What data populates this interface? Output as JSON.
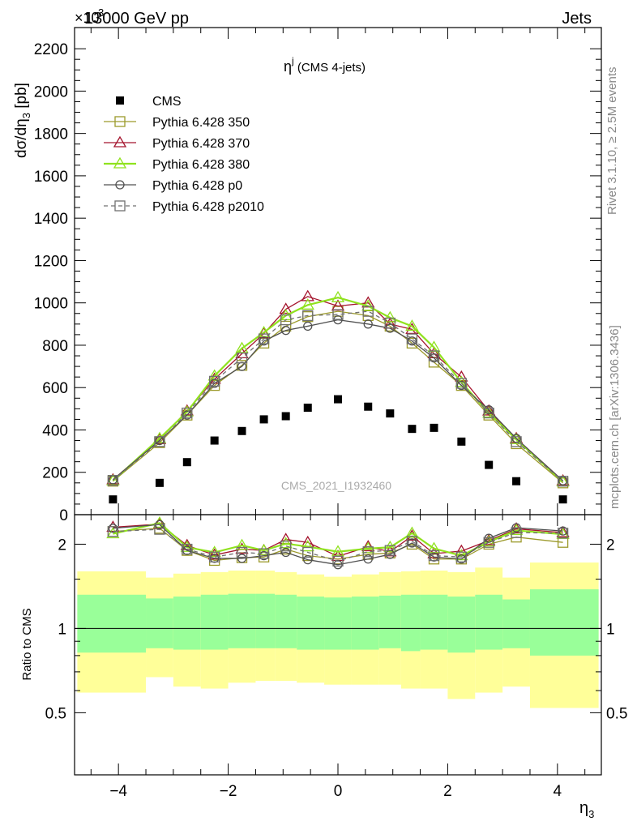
{
  "header": {
    "beam": "13000 GeV pp",
    "category": "Jets",
    "exp_mult": "×10",
    "exp_pow": "3"
  },
  "side_texts": {
    "rivet": "Rivet 3.1.10, ≥ 2.5M events",
    "mcplots": "mcplots.cern.ch [arXiv:1306.3436]"
  },
  "watermark": "CMS_2021_I1932460",
  "chart_data": [
    {
      "type": "scatter",
      "title": "η^j (CMS 4-jets)",
      "title_main": "η",
      "title_sup": "j",
      "title_rest": " (CMS 4-jets)",
      "xlabel": "η3",
      "ylabel": "dσ/dη3 [pb]",
      "xlim": [
        -4.8,
        4.8
      ],
      "ylim": [
        0,
        2300
      ],
      "yticks": [
        0,
        200,
        400,
        600,
        800,
        1000,
        1200,
        1400,
        1600,
        1800,
        2000,
        2200
      ],
      "ytick_labels": [
        "0",
        "200",
        "400",
        "600",
        "800",
        "1000",
        "1200",
        "1400",
        "1600",
        "1800",
        "2000",
        "2200"
      ],
      "y_scale_note": "values in units of 10^3 pb",
      "legend_position": "top-left",
      "x": [
        -4.1,
        -3.25,
        -2.75,
        -2.25,
        -1.75,
        -1.35,
        -0.95,
        -0.55,
        0.0,
        0.55,
        0.95,
        1.35,
        1.75,
        2.25,
        2.75,
        3.25,
        4.1
      ],
      "series": [
        {
          "name": "CMS",
          "color": "#000000",
          "marker": "filled-square",
          "line": "none",
          "values": [
            72,
            150,
            248,
            350,
            395,
            450,
            465,
            505,
            545,
            510,
            478,
            405,
            410,
            345,
            235,
            158,
            72
          ]
        },
        {
          "name": "Pythia 6.428 350",
          "color": "#9c9a2b",
          "marker": "open-square",
          "line": "solid",
          "values": [
            158,
            340,
            470,
            610,
            705,
            810,
            890,
            935,
            960,
            940,
            890,
            810,
            720,
            610,
            470,
            335,
            150
          ]
        },
        {
          "name": "Pythia 6.428 370",
          "color": "#a4142d",
          "marker": "open-triangle",
          "line": "solid",
          "values": [
            165,
            355,
            490,
            640,
            760,
            855,
            970,
            1030,
            985,
            1000,
            900,
            875,
            760,
            650,
            490,
            360,
            160
          ]
        },
        {
          "name": "Pythia 6.428 380",
          "color": "#90e21e",
          "marker": "open-triangle",
          "line": "solid",
          "values": [
            160,
            360,
            485,
            655,
            785,
            860,
            940,
            990,
            1025,
            985,
            930,
            890,
            790,
            625,
            480,
            355,
            155
          ]
        },
        {
          "name": "Pythia 6.428 p0",
          "color": "#505050",
          "marker": "open-circle",
          "line": "solid",
          "values": [
            165,
            350,
            470,
            620,
            700,
            820,
            870,
            890,
            920,
            900,
            880,
            820,
            740,
            610,
            495,
            360,
            160
          ]
        },
        {
          "name": "Pythia 6.428 p2010",
          "color": "#707070",
          "marker": "open-square",
          "line": "dashed",
          "values": [
            162,
            345,
            480,
            630,
            740,
            830,
            920,
            940,
            945,
            960,
            905,
            830,
            750,
            620,
            480,
            345,
            158
          ]
        }
      ]
    },
    {
      "type": "line",
      "xlabel": "η3",
      "ylabel": "Ratio to CMS",
      "xlim": [
        -4.8,
        4.8
      ],
      "ylim": [
        0.3,
        2.55
      ],
      "y_scale": "log",
      "yticks": [
        0.5,
        1,
        2
      ],
      "ytick_labels": [
        "0.5",
        "1",
        "2"
      ],
      "xticks": [
        -4,
        -2,
        0,
        2,
        4
      ],
      "xtick_labels": [
        "−4",
        "−2",
        "0",
        "2",
        "4"
      ],
      "x": [
        -4.1,
        -3.25,
        -2.75,
        -2.25,
        -1.75,
        -1.35,
        -0.95,
        -0.55,
        0.0,
        0.55,
        0.95,
        1.35,
        1.75,
        2.25,
        2.75,
        3.25,
        4.1
      ],
      "bands": {
        "edges": [
          -4.75,
          -3.5,
          -3.0,
          -2.5,
          -2.0,
          -1.5,
          -1.15,
          -0.75,
          -0.25,
          0.25,
          0.75,
          1.15,
          1.5,
          2.0,
          2.5,
          3.0,
          3.5,
          4.75
        ],
        "inner": {
          "color": "#99ff99",
          "lo": [
            0.82,
            0.85,
            0.84,
            0.84,
            0.85,
            0.85,
            0.85,
            0.84,
            0.84,
            0.84,
            0.85,
            0.83,
            0.84,
            0.82,
            0.84,
            0.85,
            0.8
          ],
          "hi": [
            1.32,
            1.28,
            1.3,
            1.32,
            1.33,
            1.33,
            1.32,
            1.3,
            1.29,
            1.3,
            1.31,
            1.32,
            1.32,
            1.3,
            1.32,
            1.27,
            1.38
          ]
        },
        "outer": {
          "color": "#ffff99",
          "lo": [
            0.59,
            0.67,
            0.62,
            0.61,
            0.64,
            0.65,
            0.65,
            0.64,
            0.63,
            0.63,
            0.63,
            0.61,
            0.61,
            0.56,
            0.59,
            0.62,
            0.52
          ],
          "hi": [
            1.6,
            1.52,
            1.57,
            1.59,
            1.61,
            1.61,
            1.59,
            1.56,
            1.53,
            1.56,
            1.59,
            1.6,
            1.61,
            1.59,
            1.65,
            1.52,
            1.72
          ]
        }
      },
      "series": [
        {
          "name": "Pythia 6.428 350",
          "color": "#9c9a2b",
          "marker": "open-square",
          "line": "solid",
          "values": [
            2.22,
            2.28,
            1.9,
            1.75,
            1.79,
            1.8,
            1.92,
            1.82,
            1.77,
            1.84,
            1.86,
            2.0,
            1.77,
            1.77,
            2.0,
            2.12,
            2.03
          ]
        },
        {
          "name": "Pythia 6.428 370",
          "color": "#a4142d",
          "marker": "open-triangle",
          "line": "solid",
          "values": [
            2.3,
            2.36,
            1.98,
            1.83,
            1.92,
            1.9,
            2.08,
            2.03,
            1.81,
            1.96,
            1.88,
            2.14,
            1.85,
            1.89,
            2.06,
            2.27,
            2.2
          ]
        },
        {
          "name": "Pythia 6.428 380",
          "color": "#90e21e",
          "marker": "open-triangle",
          "line": "solid",
          "values": [
            2.18,
            2.38,
            1.95,
            1.87,
            1.98,
            1.9,
            2.01,
            1.96,
            1.88,
            1.93,
            1.95,
            2.19,
            1.93,
            1.82,
            2.04,
            2.24,
            2.17
          ]
        },
        {
          "name": "Pythia 6.428 p0",
          "color": "#505050",
          "marker": "open-circle",
          "line": "solid",
          "values": [
            2.28,
            2.35,
            1.9,
            1.78,
            1.78,
            1.82,
            1.87,
            1.76,
            1.69,
            1.77,
            1.84,
            2.02,
            1.8,
            1.77,
            2.1,
            2.29,
            2.23
          ]
        },
        {
          "name": "Pythia 6.428 p2010",
          "color": "#707070",
          "marker": "open-square",
          "line": "dashed",
          "values": [
            2.22,
            2.26,
            1.92,
            1.8,
            1.87,
            1.85,
            1.97,
            1.87,
            1.74,
            1.88,
            1.9,
            2.05,
            1.82,
            1.8,
            2.03,
            2.2,
            2.19
          ]
        }
      ]
    }
  ]
}
